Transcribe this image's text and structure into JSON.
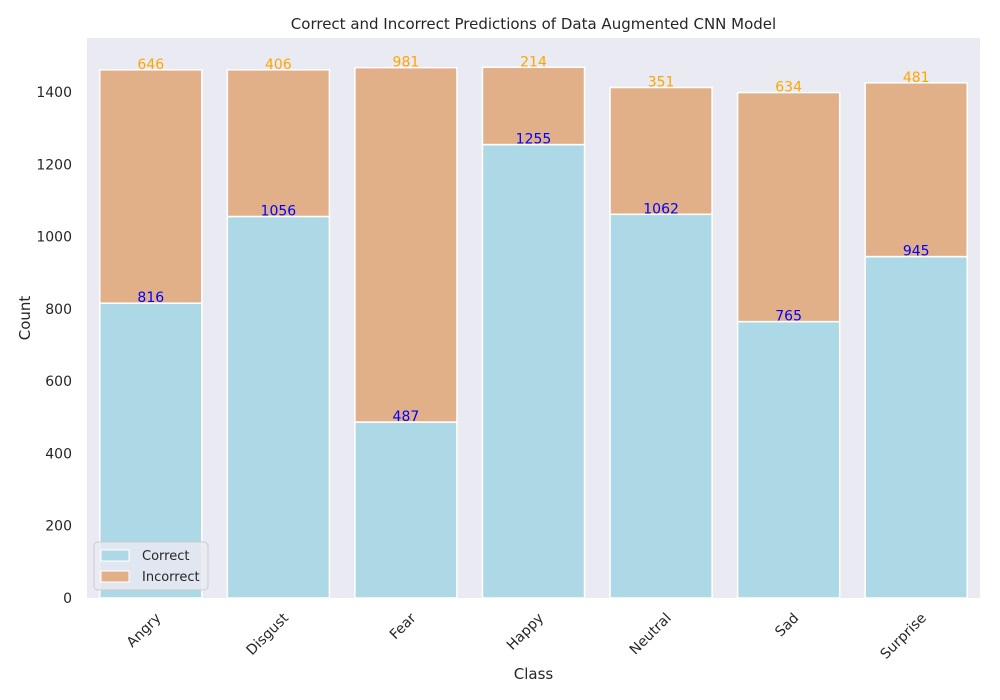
{
  "chart_data": {
    "type": "bar",
    "stacked": true,
    "title": "Correct and Incorrect Predictions of Data Augmented CNN Model",
    "xlabel": "Class",
    "ylabel": "Count",
    "categories": [
      "Angry",
      "Disgust",
      "Fear",
      "Happy",
      "Neutral",
      "Sad",
      "Surprise"
    ],
    "series": [
      {
        "name": "Correct",
        "values": [
          816,
          1056,
          487,
          1255,
          1062,
          765,
          945
        ],
        "color": "#add8e6",
        "label_color": "#0000ff"
      },
      {
        "name": "Incorrect",
        "values": [
          646,
          406,
          981,
          214,
          351,
          634,
          481
        ],
        "color": "#e1b089",
        "label_color": "#ffa500"
      }
    ],
    "ylim": [
      0,
      1550
    ],
    "yticks": [
      0,
      200,
      400,
      600,
      800,
      1000,
      1200,
      1400
    ],
    "grid": false,
    "legend_position": "lower-left",
    "plot_background": "#eaeaf2"
  }
}
